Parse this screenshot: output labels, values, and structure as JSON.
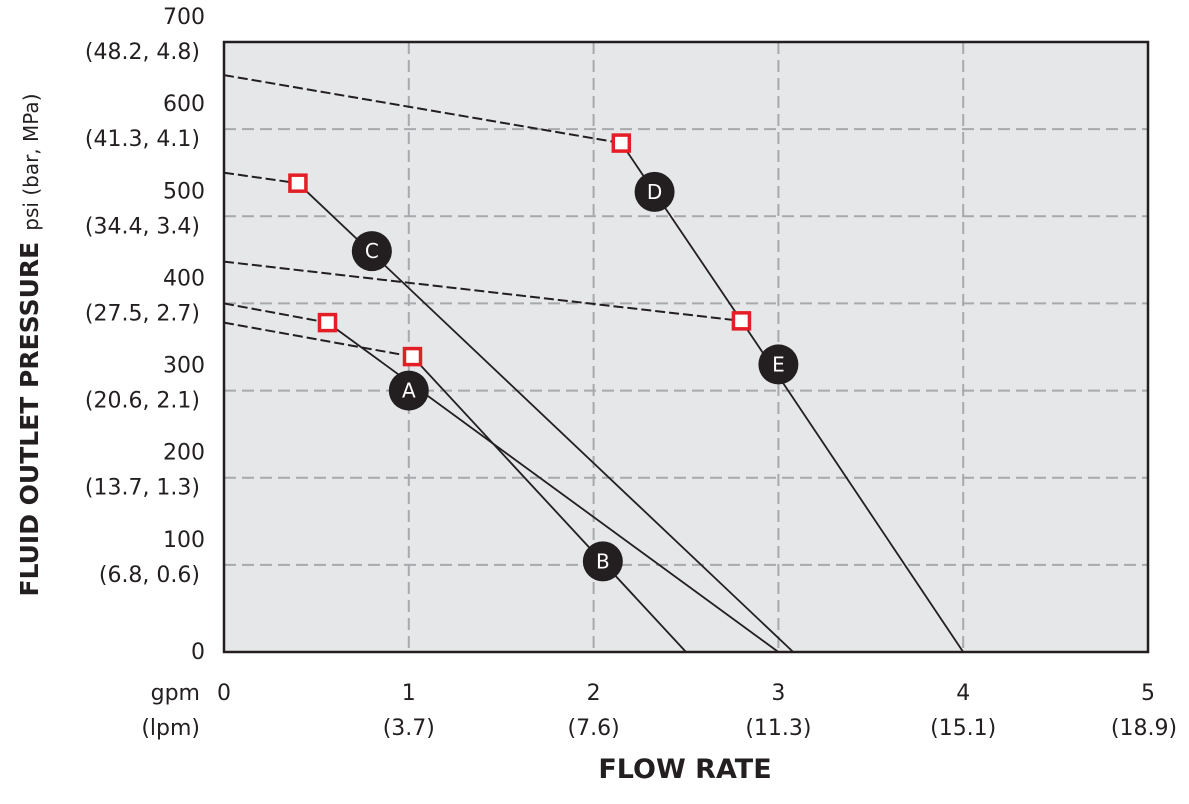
{
  "chart_data": {
    "type": "line",
    "ylabel_bold": "FLUID OUTLET PRESSURE",
    "ylabel_units": "psi (bar, MPa)",
    "xlabel": "FLOW RATE",
    "x_unit_primary": "gpm",
    "x_unit_secondary": "(lpm)",
    "xlim": [
      0,
      5
    ],
    "ylim": [
      0,
      700
    ],
    "grid": true,
    "background": "#e6e7e8",
    "grid_color": "#a7a9ac",
    "line_color": "#231f20",
    "marker_edge_color": "#e31e26",
    "x_ticks": [
      {
        "value": 0,
        "label": "0",
        "sub": ""
      },
      {
        "value": 1,
        "label": "1",
        "sub": "(3.7)"
      },
      {
        "value": 2,
        "label": "2",
        "sub": "(7.6)"
      },
      {
        "value": 3,
        "label": "3",
        "sub": "(11.3)"
      },
      {
        "value": 4,
        "label": "4",
        "sub": "(15.1)"
      },
      {
        "value": 5,
        "label": "5",
        "sub": "(18.9)"
      }
    ],
    "y_ticks": [
      {
        "value": 0,
        "label": "0",
        "sub": ""
      },
      {
        "value": 100,
        "label": "100",
        "sub": "(6.8, 0.6)"
      },
      {
        "value": 200,
        "label": "200",
        "sub": "(13.7, 1.3)"
      },
      {
        "value": 300,
        "label": "300",
        "sub": "(20.6, 2.1)"
      },
      {
        "value": 400,
        "label": "400",
        "sub": "(27.5, 2.7)"
      },
      {
        "value": 500,
        "label": "500",
        "sub": "(34.4, 3.4)"
      },
      {
        "value": 600,
        "label": "600",
        "sub": "(41.3, 4.1)"
      },
      {
        "value": 700,
        "label": "700",
        "sub": "(48.2, 4.8)"
      }
    ],
    "series": [
      {
        "name": "A",
        "dashed": [
          [
            0,
            400
          ],
          [
            0.56,
            378
          ]
        ],
        "solid": [
          [
            0.56,
            378
          ],
          [
            3.0,
            0
          ]
        ],
        "marker": [
          0.56,
          378
        ],
        "label_pos": [
          1.0,
          300
        ]
      },
      {
        "name": "B",
        "dashed": [
          [
            0,
            378
          ],
          [
            1.02,
            339
          ]
        ],
        "solid": [
          [
            1.02,
            339
          ],
          [
            2.5,
            0
          ]
        ],
        "marker": [
          1.02,
          339
        ],
        "label_pos": [
          2.05,
          104
        ]
      },
      {
        "name": "C",
        "dashed": [
          [
            0,
            550
          ],
          [
            0.4,
            538
          ]
        ],
        "solid": [
          [
            0.4,
            538
          ],
          [
            3.08,
            0
          ]
        ],
        "marker": [
          0.4,
          538
        ],
        "label_pos": [
          0.8,
          460
        ]
      },
      {
        "name": "D",
        "dashed": [
          [
            0,
            662
          ],
          [
            2.15,
            584
          ]
        ],
        "solid": [
          [
            2.15,
            584
          ],
          [
            2.8,
            380
          ]
        ],
        "marker": [
          2.15,
          584
        ],
        "label_pos": [
          2.33,
          528
        ]
      },
      {
        "name": "E",
        "dashed": [
          [
            0,
            448
          ],
          [
            2.8,
            380
          ]
        ],
        "solid": [
          [
            2.8,
            380
          ],
          [
            4.0,
            0
          ]
        ],
        "marker": [
          2.8,
          380
        ],
        "label_pos": [
          3.0,
          330
        ]
      }
    ]
  }
}
